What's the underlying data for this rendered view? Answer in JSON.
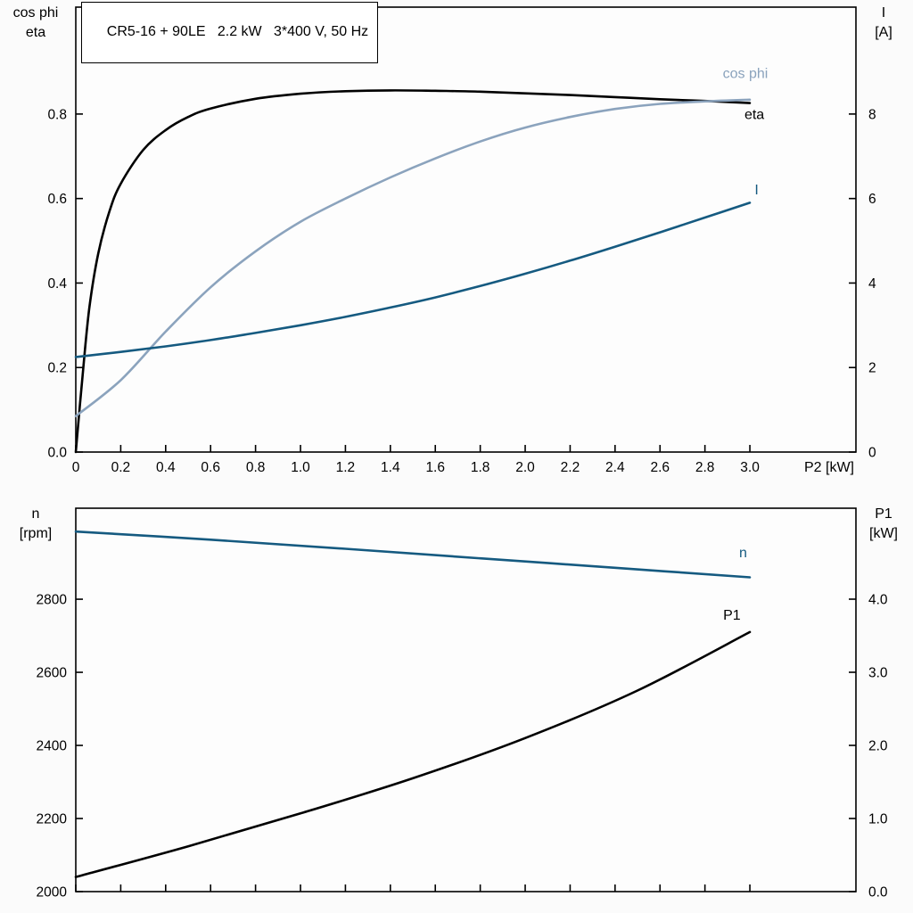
{
  "page": {
    "background": "#fbfbfb",
    "frame_color": "#000000"
  },
  "chart_data": [
    {
      "type": "line",
      "title": "CR5-16 + 90LE   2.2 kW   3*400 V, 50 Hz",
      "x_axis": {
        "label": "P2 [kW]",
        "range": [
          0,
          3.472
        ],
        "tick_values": [
          0,
          0.2,
          0.4,
          0.6,
          0.8,
          1.0,
          1.2,
          1.4,
          1.6,
          1.8,
          2.0,
          2.2,
          2.4,
          2.6,
          2.8,
          3.0
        ],
        "tick_labels": [
          "0",
          "0.2",
          "0.4",
          "0.6",
          "0.8",
          "1.0",
          "1.2",
          "1.4",
          "1.6",
          "1.8",
          "2.0",
          "2.2",
          "2.4",
          "2.6",
          "2.8",
          "3.0"
        ],
        "show_tick_labels": true
      },
      "left_axis": {
        "title_lines": [
          "cos phi",
          "eta"
        ],
        "range": [
          0,
          1.053
        ],
        "tick_values": [
          0,
          0.2,
          0.4,
          0.6,
          0.8
        ],
        "tick_labels": [
          "0.0",
          "0.2",
          "0.4",
          "0.6",
          "0.8"
        ]
      },
      "right_axis": {
        "title_lines": [
          "I",
          "[A]"
        ],
        "range": [
          0,
          10.53
        ],
        "tick_values": [
          0,
          2,
          4,
          6,
          8
        ],
        "tick_labels": [
          "0",
          "2",
          "4",
          "6",
          "8"
        ]
      },
      "series": [
        {
          "name": "eta",
          "axis": "left",
          "color": "#000000",
          "width": 2.6,
          "label": {
            "text": "eta",
            "x": 3.02,
            "y": 0.788,
            "anchor": "middle"
          },
          "points": [
            [
              0,
              0
            ],
            [
              0.03,
              0.18
            ],
            [
              0.06,
              0.34
            ],
            [
              0.1,
              0.47
            ],
            [
              0.15,
              0.57
            ],
            [
              0.2,
              0.635
            ],
            [
              0.3,
              0.715
            ],
            [
              0.4,
              0.762
            ],
            [
              0.5,
              0.793
            ],
            [
              0.6,
              0.813
            ],
            [
              0.8,
              0.836
            ],
            [
              1.0,
              0.848
            ],
            [
              1.2,
              0.854
            ],
            [
              1.4,
              0.856
            ],
            [
              1.6,
              0.855
            ],
            [
              1.8,
              0.853
            ],
            [
              2.0,
              0.849
            ],
            [
              2.2,
              0.845
            ],
            [
              2.4,
              0.84
            ],
            [
              2.6,
              0.835
            ],
            [
              2.8,
              0.831
            ],
            [
              3.0,
              0.826
            ]
          ]
        },
        {
          "name": "cos phi",
          "axis": "left",
          "color": "#8ba3bd",
          "width": 2.6,
          "label": {
            "text": "cos phi",
            "x": 2.98,
            "y": 0.885,
            "anchor": "middle"
          },
          "points": [
            [
              0,
              0.085
            ],
            [
              0.2,
              0.17
            ],
            [
              0.4,
              0.285
            ],
            [
              0.6,
              0.39
            ],
            [
              0.8,
              0.475
            ],
            [
              1.0,
              0.545
            ],
            [
              1.2,
              0.6
            ],
            [
              1.4,
              0.65
            ],
            [
              1.6,
              0.695
            ],
            [
              1.8,
              0.735
            ],
            [
              2.0,
              0.768
            ],
            [
              2.2,
              0.793
            ],
            [
              2.4,
              0.812
            ],
            [
              2.6,
              0.824
            ],
            [
              2.8,
              0.83
            ],
            [
              3.0,
              0.834
            ]
          ]
        },
        {
          "name": "I",
          "axis": "right",
          "color": "#155a80",
          "width": 2.6,
          "label": {
            "text": "I",
            "x": 3.03,
            "y": 6.1,
            "anchor": "middle"
          },
          "points": [
            [
              0,
              2.25
            ],
            [
              0.2,
              2.37
            ],
            [
              0.4,
              2.5
            ],
            [
              0.6,
              2.65
            ],
            [
              0.8,
              2.82
            ],
            [
              1.0,
              3.0
            ],
            [
              1.2,
              3.2
            ],
            [
              1.4,
              3.42
            ],
            [
              1.6,
              3.66
            ],
            [
              1.8,
              3.93
            ],
            [
              2.0,
              4.22
            ],
            [
              2.2,
              4.53
            ],
            [
              2.4,
              4.86
            ],
            [
              2.6,
              5.2
            ],
            [
              2.8,
              5.55
            ],
            [
              3.0,
              5.9
            ]
          ]
        }
      ]
    },
    {
      "type": "line",
      "title": "",
      "x_axis": {
        "label": "",
        "range": [
          0,
          3.472
        ],
        "tick_values": [
          0,
          0.2,
          0.4,
          0.6,
          0.8,
          1.0,
          1.2,
          1.4,
          1.6,
          1.8,
          2.0,
          2.2,
          2.4,
          2.6,
          2.8,
          3.0
        ],
        "tick_labels": [],
        "show_tick_labels": false
      },
      "left_axis": {
        "title_lines": [
          "n",
          "[rpm]"
        ],
        "range": [
          2000,
          3049
        ],
        "tick_values": [
          2000,
          2200,
          2400,
          2600,
          2800
        ],
        "tick_labels": [
          "2000",
          "2200",
          "2400",
          "2600",
          "2800"
        ]
      },
      "right_axis": {
        "title_lines": [
          "P1",
          "[kW]"
        ],
        "range": [
          0,
          5.244
        ],
        "tick_values": [
          0,
          1,
          2,
          3,
          4
        ],
        "tick_labels": [
          "0.0",
          "1.0",
          "2.0",
          "3.0",
          "4.0"
        ]
      },
      "series": [
        {
          "name": "n",
          "axis": "left",
          "color": "#155a80",
          "width": 2.6,
          "label": {
            "text": "n",
            "x": 2.97,
            "y": 2915,
            "anchor": "middle"
          },
          "points": [
            [
              0,
              2985
            ],
            [
              0.6,
              2963
            ],
            [
              1.2,
              2938
            ],
            [
              1.8,
              2912
            ],
            [
              2.4,
              2886
            ],
            [
              3.0,
              2860
            ]
          ]
        },
        {
          "name": "P1",
          "axis": "right",
          "color": "#000000",
          "width": 2.6,
          "label": {
            "text": "P1",
            "x": 2.92,
            "y": 3.72,
            "anchor": "middle"
          },
          "points": [
            [
              0,
              0.2
            ],
            [
              0.5,
              0.62
            ],
            [
              1.0,
              1.07
            ],
            [
              1.5,
              1.55
            ],
            [
              2.0,
              2.1
            ],
            [
              2.5,
              2.75
            ],
            [
              3.0,
              3.55
            ]
          ]
        }
      ]
    }
  ]
}
